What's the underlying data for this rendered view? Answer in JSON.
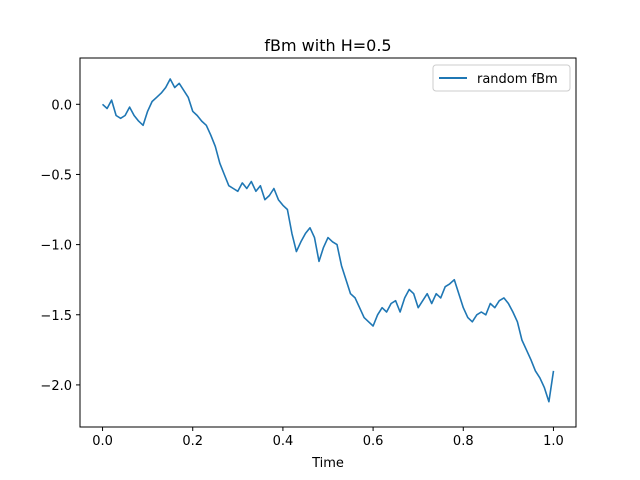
{
  "chart_data": {
    "type": "line",
    "title": "fBm with H=0.5",
    "xlabel": "Time",
    "ylabel": "",
    "xlim": [
      -0.05,
      1.05
    ],
    "ylim": [
      -2.3,
      0.33
    ],
    "xticks": [
      0.0,
      0.2,
      0.4,
      0.6,
      0.8,
      1.0
    ],
    "xtick_labels": [
      "0.0",
      "0.2",
      "0.4",
      "0.6",
      "0.8",
      "1.0"
    ],
    "yticks": [
      0.0,
      -0.5,
      -1.0,
      -1.5,
      -2.0
    ],
    "ytick_labels": [
      "0.0",
      "−0.5",
      "−1.0",
      "−1.5",
      "−2.0"
    ],
    "grid": false,
    "legend_position": "top-right",
    "series": [
      {
        "name": "random fBm",
        "color": "#1f77b4",
        "x": [
          0.0,
          0.01,
          0.02,
          0.03,
          0.04,
          0.05,
          0.06,
          0.07,
          0.08,
          0.09,
          0.1,
          0.11,
          0.12,
          0.13,
          0.14,
          0.15,
          0.16,
          0.17,
          0.18,
          0.19,
          0.2,
          0.21,
          0.22,
          0.23,
          0.24,
          0.25,
          0.26,
          0.27,
          0.28,
          0.29,
          0.3,
          0.31,
          0.32,
          0.33,
          0.34,
          0.35,
          0.36,
          0.37,
          0.38,
          0.39,
          0.4,
          0.41,
          0.42,
          0.43,
          0.44,
          0.45,
          0.46,
          0.47,
          0.48,
          0.49,
          0.5,
          0.51,
          0.52,
          0.53,
          0.54,
          0.55,
          0.56,
          0.57,
          0.58,
          0.59,
          0.6,
          0.61,
          0.62,
          0.63,
          0.64,
          0.65,
          0.66,
          0.67,
          0.68,
          0.69,
          0.7,
          0.71,
          0.72,
          0.73,
          0.74,
          0.75,
          0.76,
          0.77,
          0.78,
          0.79,
          0.8,
          0.81,
          0.82,
          0.83,
          0.84,
          0.85,
          0.86,
          0.87,
          0.88,
          0.89,
          0.9,
          0.91,
          0.92,
          0.93,
          0.94,
          0.95,
          0.96,
          0.97,
          0.98,
          0.99,
          1.0
        ],
        "y": [
          0.0,
          -0.03,
          0.03,
          -0.08,
          -0.1,
          -0.08,
          -0.02,
          -0.08,
          -0.12,
          -0.15,
          -0.05,
          0.02,
          0.05,
          0.08,
          0.12,
          0.18,
          0.12,
          0.15,
          0.1,
          0.05,
          -0.05,
          -0.08,
          -0.12,
          -0.15,
          -0.22,
          -0.3,
          -0.42,
          -0.5,
          -0.58,
          -0.6,
          -0.62,
          -0.56,
          -0.6,
          -0.55,
          -0.62,
          -0.58,
          -0.68,
          -0.65,
          -0.6,
          -0.68,
          -0.72,
          -0.75,
          -0.92,
          -1.05,
          -0.98,
          -0.92,
          -0.88,
          -0.95,
          -1.12,
          -1.02,
          -0.95,
          -0.98,
          -1.0,
          -1.15,
          -1.25,
          -1.35,
          -1.38,
          -1.45,
          -1.52,
          -1.55,
          -1.58,
          -1.5,
          -1.45,
          -1.48,
          -1.42,
          -1.4,
          -1.48,
          -1.38,
          -1.32,
          -1.35,
          -1.45,
          -1.4,
          -1.35,
          -1.42,
          -1.35,
          -1.38,
          -1.3,
          -1.28,
          -1.25,
          -1.35,
          -1.45,
          -1.52,
          -1.55,
          -1.5,
          -1.48,
          -1.5,
          -1.42,
          -1.45,
          -1.4,
          -1.38,
          -1.42,
          -1.48,
          -1.55,
          -1.68,
          -1.75,
          -1.82,
          -1.9,
          -1.95,
          -2.02,
          -2.12,
          -1.9
        ]
      }
    ]
  }
}
